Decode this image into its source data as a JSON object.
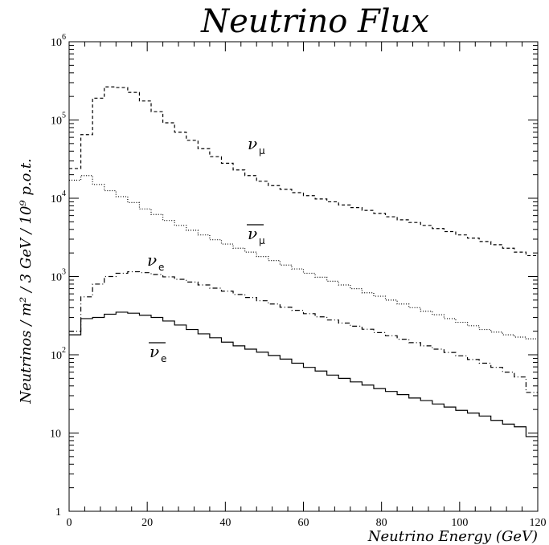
{
  "chart_data": {
    "type": "line",
    "title": "Neutrino Flux",
    "xlabel": "Neutrino Energy (GeV)",
    "ylabel": "Neutrinos / m² / 3 GeV / 10⁹ p.o.t.",
    "xlim": [
      0,
      120
    ],
    "ylim": [
      1,
      1000000
    ],
    "yscale": "log",
    "bin_width": 3,
    "x_ticks": [
      "0",
      "20",
      "40",
      "60",
      "80",
      "100",
      "120"
    ],
    "y_ticks": [
      {
        "base": "1",
        "exp": ""
      },
      {
        "base": "10",
        "exp": ""
      },
      {
        "base": "10",
        "exp": "2"
      },
      {
        "base": "10",
        "exp": "3"
      },
      {
        "base": "10",
        "exp": "4"
      },
      {
        "base": "10",
        "exp": "5"
      },
      {
        "base": "10",
        "exp": "6"
      }
    ],
    "series": [
      {
        "name": "ν_μ",
        "nu": "ν",
        "sub": "μ",
        "bar": false,
        "dash": "4,3",
        "values": [
          24000,
          65000,
          190000,
          265000,
          260000,
          225000,
          175000,
          128000,
          92000,
          70000,
          55000,
          43000,
          34000,
          28000,
          23000,
          19500,
          16500,
          14500,
          13000,
          11800,
          10800,
          9800,
          9000,
          8200,
          7600,
          7000,
          6400,
          5800,
          5300,
          4900,
          4500,
          4100,
          3750,
          3400,
          3100,
          2800,
          2550,
          2300,
          2050,
          1850
        ]
      },
      {
        "name": "ν̄_μ",
        "nu": "ν",
        "sub": "μ",
        "bar": true,
        "dash": "1,2",
        "values": [
          17000,
          19500,
          15000,
          12500,
          10500,
          8800,
          7300,
          6200,
          5200,
          4500,
          3900,
          3400,
          2950,
          2600,
          2300,
          2050,
          1800,
          1600,
          1400,
          1250,
          1100,
          980,
          870,
          780,
          700,
          620,
          560,
          500,
          445,
          400,
          360,
          325,
          290,
          260,
          235,
          210,
          195,
          180,
          168,
          160
        ]
      },
      {
        "name": "ν_e",
        "nu": "ν",
        "sub": "e",
        "bar": false,
        "dash": "6,3,1,3",
        "values": [
          200,
          550,
          800,
          1000,
          1100,
          1150,
          1120,
          1060,
          990,
          920,
          850,
          780,
          710,
          650,
          590,
          540,
          490,
          445,
          405,
          370,
          335,
          305,
          278,
          254,
          232,
          212,
          192,
          175,
          158,
          143,
          130,
          118,
          107,
          97,
          87,
          78,
          69,
          60,
          52,
          33
        ]
      },
      {
        "name": "ν̄_e",
        "nu": "ν",
        "sub": "e",
        "bar": true,
        "dash": "",
        "values": [
          180,
          290,
          300,
          330,
          350,
          340,
          320,
          300,
          270,
          240,
          210,
          185,
          165,
          145,
          130,
          118,
          108,
          98,
          88,
          78,
          69,
          62,
          55,
          50,
          45,
          41,
          37,
          34,
          31,
          28,
          26,
          23.5,
          21.5,
          19.5,
          18,
          16.5,
          14.5,
          13,
          12,
          9
        ]
      }
    ]
  }
}
